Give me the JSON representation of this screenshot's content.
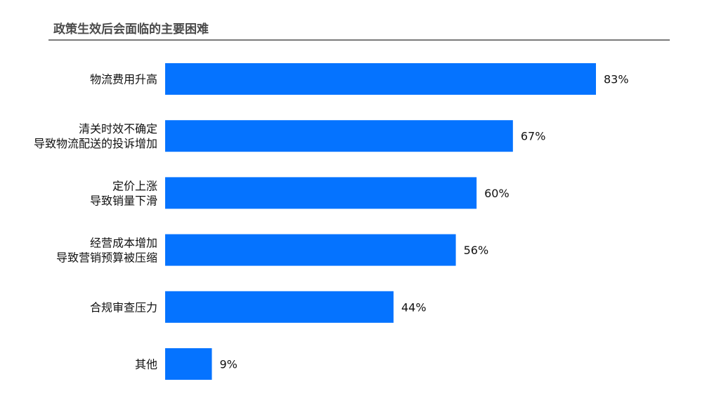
{
  "chart_data": {
    "type": "bar",
    "orientation": "horizontal",
    "title": "政策生效后会面临的主要困难",
    "categories": [
      [
        "物流费用升高"
      ],
      [
        "清关时效不确定",
        "导致物流配送的投诉增加"
      ],
      [
        "定价上涨",
        "导致销量下滑"
      ],
      [
        "经营成本增加",
        "导致营销预算被压缩"
      ],
      [
        "合规审查压力"
      ],
      [
        "其他"
      ]
    ],
    "values": [
      83,
      67,
      60,
      56,
      44,
      9
    ],
    "value_labels": [
      "83%",
      "67%",
      "60%",
      "56%",
      "44%",
      "9%"
    ],
    "xlim": [
      0,
      100
    ],
    "grid": false,
    "legend": "none",
    "bar_color": "#0573FF"
  }
}
